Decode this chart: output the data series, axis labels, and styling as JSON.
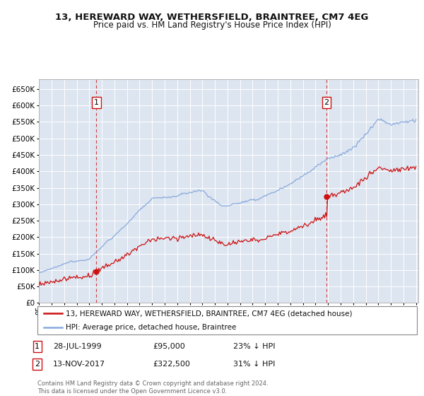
{
  "title": "13, HEREWARD WAY, WETHERSFIELD, BRAINTREE, CM7 4EG",
  "subtitle": "Price paid vs. HM Land Registry's House Price Index (HPI)",
  "background_color": "#dde5f0",
  "grid_color": "#ffffff",
  "sale1_date": 1999.57,
  "sale1_price": 95000,
  "sale1_label": "1",
  "sale2_date": 2017.87,
  "sale2_price": 322500,
  "sale2_label": "2",
  "legend_line1": "13, HEREWARD WAY, WETHERSFIELD, BRAINTREE, CM7 4EG (detached house)",
  "legend_line2": "HPI: Average price, detached house, Braintree",
  "annotation1_date": "28-JUL-1999",
  "annotation1_price": "£95,000",
  "annotation1_hpi": "23% ↓ HPI",
  "annotation2_date": "13-NOV-2017",
  "annotation2_price": "£322,500",
  "annotation2_hpi": "31% ↓ HPI",
  "footer": "Contains HM Land Registry data © Crown copyright and database right 2024.\nThis data is licensed under the Open Government Licence v3.0.",
  "sale_color": "#cc1111",
  "hpi_color": "#88aadd",
  "vline_color": "#cc2222",
  "ylim_min": 0,
  "ylim_max": 680000,
  "xlim_min": 1995.0,
  "xlim_max": 2025.2,
  "title_fontsize": 9.5,
  "subtitle_fontsize": 8.5
}
